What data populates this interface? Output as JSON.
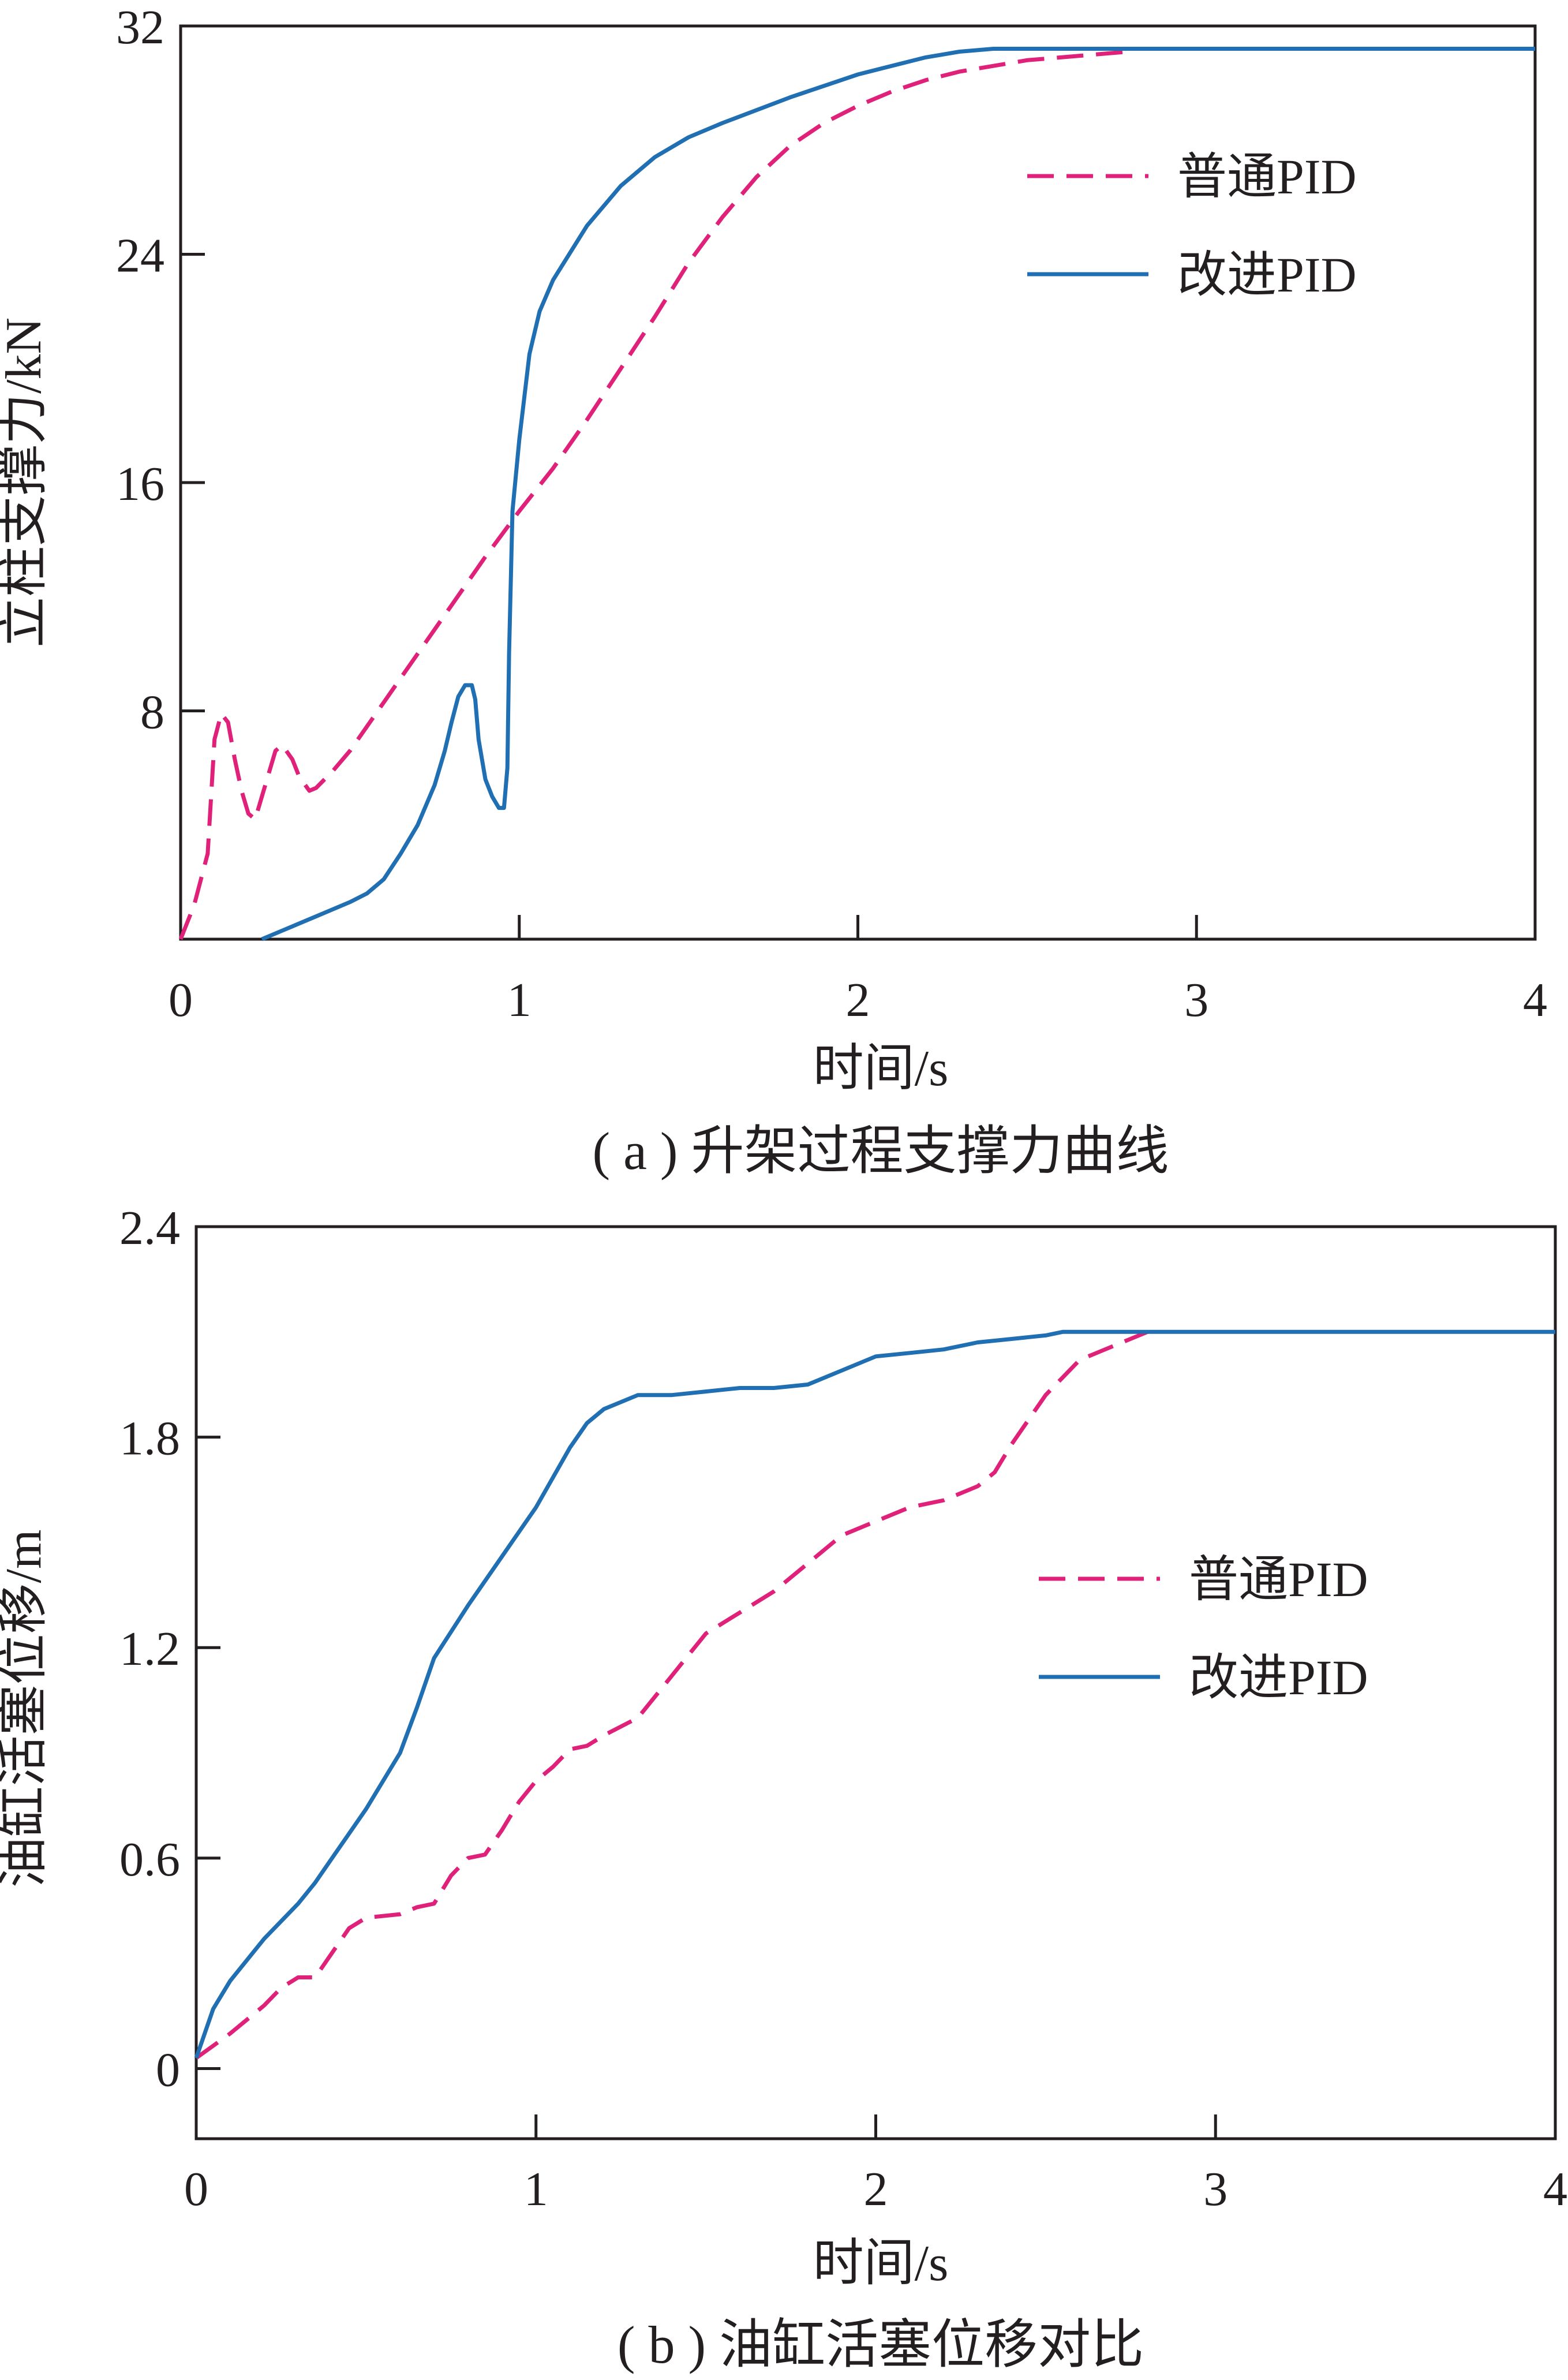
{
  "colors": {
    "dashed": "#e0217a",
    "solid": "#1f6fb2",
    "axis": "#231f20"
  },
  "chart_data": [
    {
      "type": "line",
      "caption": "( a ) 升架过程支撑力曲线",
      "xlabel": "时间/s",
      "ylabel": "立柱支撑力/kN",
      "xlim": [
        0,
        4
      ],
      "ylim": [
        0,
        32
      ],
      "xticks": [
        "0",
        "1",
        "2",
        "3",
        "4"
      ],
      "yticks": [
        "8",
        "16",
        "24",
        "32"
      ],
      "grid": false,
      "legend_position": "top-right",
      "series": [
        {
          "name": "普通PID",
          "style": "dashed",
          "x": [
            0,
            0.04,
            0.08,
            0.1,
            0.12,
            0.14,
            0.16,
            0.18,
            0.2,
            0.22,
            0.25,
            0.28,
            0.3,
            0.33,
            0.35,
            0.38,
            0.4,
            0.45,
            0.5,
            0.6,
            0.7,
            0.8,
            0.9,
            1.0,
            1.1,
            1.2,
            1.3,
            1.4,
            1.5,
            1.6,
            1.7,
            1.8,
            1.9,
            2.0,
            2.1,
            2.2,
            2.3,
            2.4,
            2.5,
            2.6,
            2.7,
            2.8
          ],
          "y": [
            0,
            1.2,
            3,
            7,
            7.9,
            7.6,
            6.3,
            5.2,
            4.4,
            4.2,
            5.4,
            6.6,
            6.8,
            6.3,
            5.7,
            5.2,
            5.3,
            5.9,
            6.6,
            8.3,
            10.0,
            11.7,
            13.4,
            15.0,
            16.5,
            18.2,
            20.0,
            21.8,
            23.7,
            25.3,
            26.7,
            27.8,
            28.6,
            29.2,
            29.7,
            30.1,
            30.4,
            30.6,
            30.8,
            30.9,
            31.0,
            31.1
          ]
        },
        {
          "name": "改进PID",
          "style": "solid",
          "x": [
            0.24,
            0.3,
            0.4,
            0.5,
            0.55,
            0.6,
            0.65,
            0.7,
            0.75,
            0.78,
            0.8,
            0.82,
            0.84,
            0.86,
            0.87,
            0.88,
            0.9,
            0.92,
            0.94,
            0.955,
            0.965,
            0.97,
            0.98,
            1.0,
            1.03,
            1.06,
            1.1,
            1.2,
            1.3,
            1.4,
            1.5,
            1.6,
            1.8,
            2.0,
            2.2,
            2.3,
            2.4,
            2.6,
            2.8,
            3.0,
            3.5,
            4.0
          ],
          "y": [
            0,
            0.3,
            0.8,
            1.3,
            1.6,
            2.1,
            3.0,
            4.0,
            5.4,
            6.6,
            7.6,
            8.5,
            8.9,
            8.9,
            8.4,
            7.0,
            5.6,
            5.0,
            4.6,
            4.6,
            6.0,
            10.0,
            15.0,
            17.5,
            20.5,
            22.0,
            23.1,
            25.0,
            26.4,
            27.4,
            28.1,
            28.6,
            29.5,
            30.3,
            30.9,
            31.1,
            31.2,
            31.2,
            31.2,
            31.2,
            31.2,
            31.2
          ]
        }
      ]
    },
    {
      "type": "line",
      "caption": "( b ) 油缸活塞位移对比",
      "xlabel": "时间/s",
      "ylabel": "油缸活塞位移/m",
      "xlim": [
        0,
        4
      ],
      "ylim": [
        -0.2,
        2.4
      ],
      "xticks": [
        "0",
        "1",
        "2",
        "3",
        "4"
      ],
      "yticks": [
        "0",
        "0.6",
        "1.2",
        "1.8",
        "2.4"
      ],
      "grid": false,
      "legend_position": "middle-right",
      "series": [
        {
          "name": "普通PID",
          "style": "dashed",
          "x": [
            0,
            0.1,
            0.2,
            0.25,
            0.3,
            0.35,
            0.4,
            0.45,
            0.5,
            0.6,
            0.65,
            0.7,
            0.75,
            0.8,
            0.85,
            0.9,
            0.95,
            1.0,
            1.05,
            1.1,
            1.15,
            1.2,
            1.3,
            1.4,
            1.5,
            1.6,
            1.7,
            1.8,
            1.9,
            2.0,
            2.1,
            2.2,
            2.3,
            2.35,
            2.4,
            2.5,
            2.6,
            2.7,
            2.8
          ],
          "y": [
            0.03,
            0.1,
            0.18,
            0.23,
            0.26,
            0.26,
            0.33,
            0.4,
            0.43,
            0.44,
            0.46,
            0.47,
            0.55,
            0.6,
            0.61,
            0.68,
            0.76,
            0.82,
            0.86,
            0.91,
            0.92,
            0.95,
            1.0,
            1.12,
            1.24,
            1.3,
            1.36,
            1.44,
            1.52,
            1.56,
            1.6,
            1.62,
            1.66,
            1.7,
            1.78,
            1.92,
            2.02,
            2.06,
            2.1
          ]
        },
        {
          "name": "改进PID",
          "style": "solid",
          "x": [
            0,
            0.05,
            0.1,
            0.2,
            0.3,
            0.35,
            0.4,
            0.5,
            0.6,
            0.65,
            0.7,
            0.8,
            0.9,
            1.0,
            1.1,
            1.15,
            1.2,
            1.3,
            1.4,
            1.5,
            1.6,
            1.7,
            1.8,
            1.9,
            2.0,
            2.1,
            2.2,
            2.3,
            2.4,
            2.5,
            2.55,
            2.6,
            3.0,
            3.5,
            4.0
          ],
          "y": [
            0.03,
            0.17,
            0.25,
            0.37,
            0.47,
            0.53,
            0.6,
            0.74,
            0.9,
            1.03,
            1.17,
            1.32,
            1.46,
            1.6,
            1.77,
            1.84,
            1.88,
            1.92,
            1.92,
            1.93,
            1.94,
            1.94,
            1.95,
            1.99,
            2.03,
            2.04,
            2.05,
            2.07,
            2.08,
            2.09,
            2.1,
            2.1,
            2.1,
            2.1,
            2.1
          ]
        }
      ]
    }
  ]
}
